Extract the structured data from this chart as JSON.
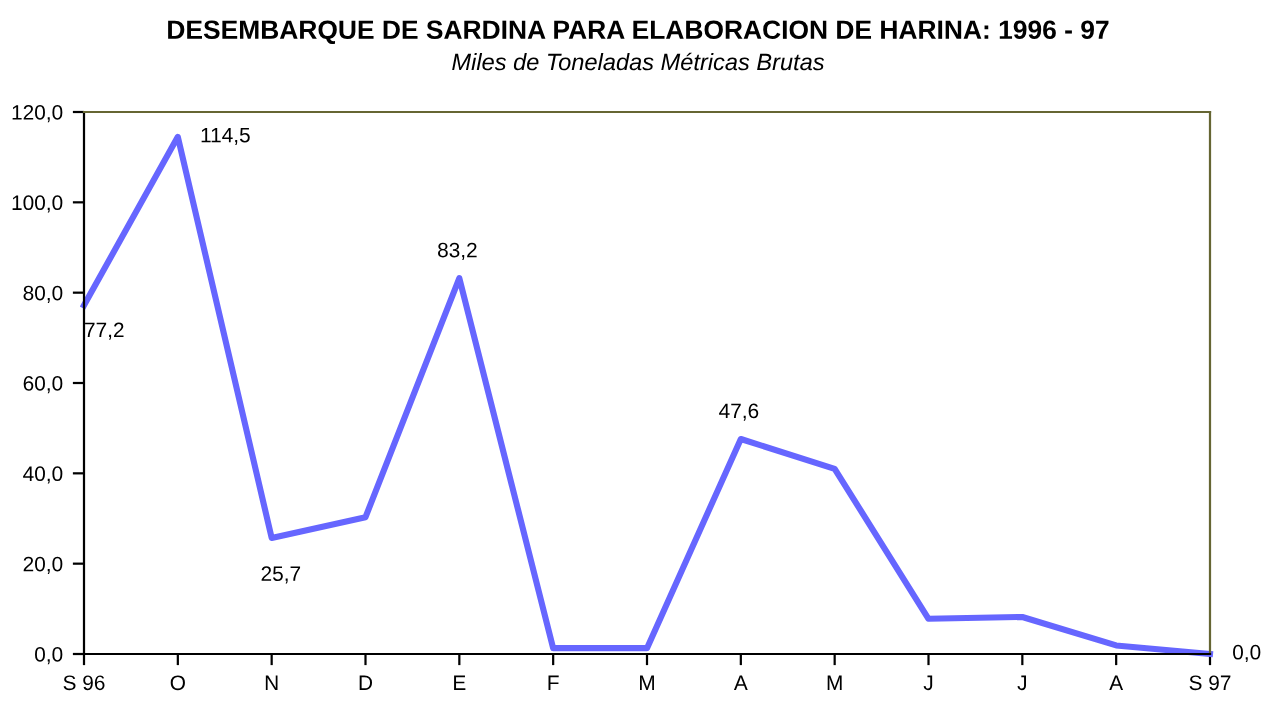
{
  "chart_data": {
    "type": "line",
    "title": "DESEMBARQUE DE SARDINA PARA ELABORACION DE HARINA: 1996 - 97",
    "subtitle": "Miles de Toneladas Métricas Brutas",
    "categories": [
      "S 96",
      "O",
      "N",
      "D",
      "E",
      "F",
      "M",
      "A",
      "M",
      "J",
      "J",
      "A",
      "S 97"
    ],
    "series": [
      {
        "color": "#6666ff",
        "values": [
          77.2,
          114.5,
          25.7,
          30.3,
          83.2,
          1.3,
          1.3,
          47.6,
          41.0,
          7.8,
          8.2,
          1.9,
          0.0
        ],
        "value_labels": [
          "77,2",
          "114,5",
          "25,7",
          null,
          "83,2",
          null,
          null,
          "47,6",
          null,
          null,
          null,
          null,
          "0,0"
        ]
      }
    ],
    "ylim": [
      0,
      120
    ],
    "yticks": [
      {
        "value": 0,
        "label": "0,0"
      },
      {
        "value": 20,
        "label": "20,0"
      },
      {
        "value": 40,
        "label": "40,0"
      },
      {
        "value": 60,
        "label": "60,0"
      },
      {
        "value": 80,
        "label": "80,0"
      },
      {
        "value": 100,
        "label": "100,0"
      },
      {
        "value": 120,
        "label": "120,0"
      }
    ],
    "grid": false,
    "legend": false,
    "marker": "none",
    "line_style": "solid"
  }
}
